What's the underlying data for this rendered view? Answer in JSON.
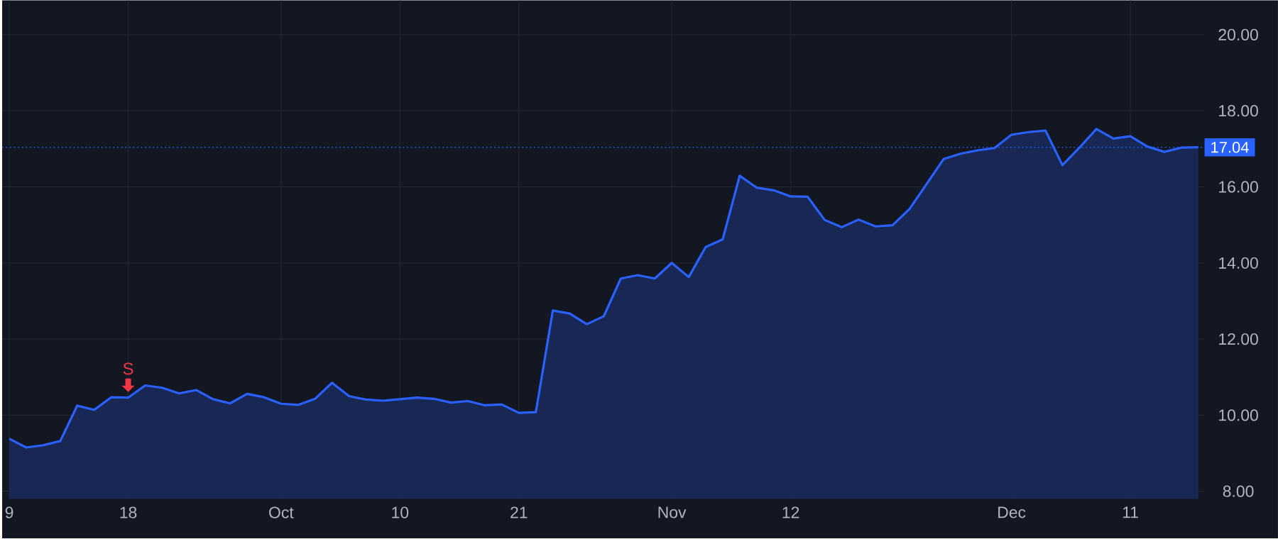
{
  "chart_data": {
    "type": "area",
    "categories": [
      "9",
      null,
      null,
      null,
      null,
      null,
      null,
      "18",
      null,
      null,
      null,
      null,
      null,
      null,
      null,
      null,
      "Oct",
      null,
      null,
      null,
      null,
      null,
      null,
      "10",
      null,
      null,
      null,
      null,
      null,
      null,
      "21",
      null,
      null,
      null,
      null,
      null,
      null,
      null,
      null,
      "Nov",
      null,
      null,
      null,
      null,
      null,
      null,
      "12",
      null,
      null,
      null,
      null,
      null,
      null,
      null,
      null,
      null,
      null,
      null,
      null,
      "Dec",
      null,
      null,
      null,
      null,
      null,
      null,
      "11",
      null,
      null,
      null,
      null
    ],
    "series": [
      {
        "color": "#2962ff",
        "values": [
          9.38,
          9.15,
          9.21,
          9.32,
          10.25,
          10.14,
          10.47,
          10.46,
          10.78,
          10.72,
          10.57,
          10.66,
          10.42,
          10.31,
          10.56,
          10.47,
          10.3,
          10.27,
          10.43,
          10.85,
          10.5,
          10.41,
          10.38,
          10.42,
          10.46,
          10.43,
          10.33,
          10.37,
          10.26,
          10.28,
          10.06,
          10.08,
          12.75,
          12.67,
          12.39,
          12.6,
          13.59,
          13.68,
          13.59,
          14.0,
          13.63,
          14.42,
          14.62,
          16.29,
          15.98,
          15.91,
          15.75,
          15.74,
          15.13,
          14.94,
          15.14,
          14.96,
          14.99,
          15.42,
          16.07,
          16.73,
          16.87,
          16.96,
          17.02,
          17.37,
          17.44,
          17.48,
          16.57,
          17.03,
          17.52,
          17.27,
          17.33,
          17.06,
          16.92,
          17.03,
          17.04
        ]
      }
    ],
    "ylim": [
      7.8,
      20.9
    ],
    "yticks": [
      {
        "value": 8,
        "label": "8.00"
      },
      {
        "value": 10,
        "label": "10.00"
      },
      {
        "value": 12,
        "label": "12.00"
      },
      {
        "value": 14,
        "label": "14.00"
      },
      {
        "value": 16,
        "label": "16.00"
      },
      {
        "value": 18,
        "label": "18.00"
      },
      {
        "value": 20,
        "label": "20.00"
      }
    ],
    "grid": true,
    "line_style": "solid",
    "ref_lines": [
      {
        "axis": "y",
        "value": 17.04,
        "label": "17.04",
        "color": "#2962ff",
        "line_style": "dotted"
      }
    ],
    "annotations": [
      {
        "text": "S",
        "x": "18",
        "y": 10.46
      }
    ]
  }
}
